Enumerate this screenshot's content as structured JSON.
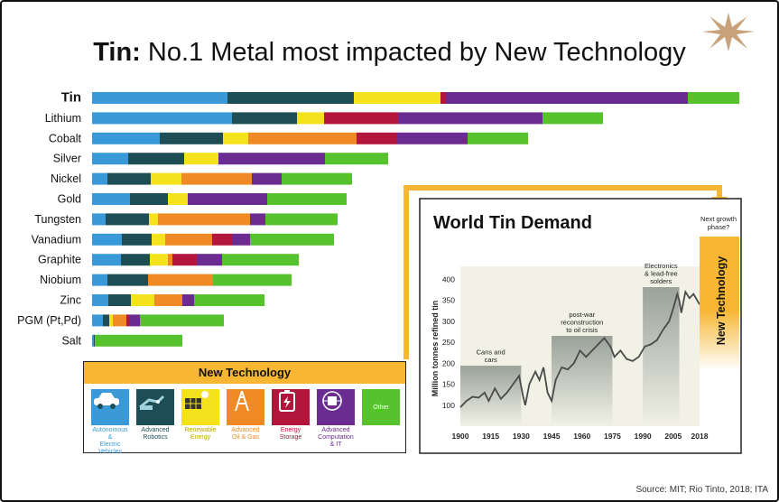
{
  "title": {
    "bold": "Tin:",
    "rest": " No.1 Metal most impacted by New Technology"
  },
  "source": "Source: MIT; Rio Tinto, 2018; ITA",
  "colors": {
    "autonomous": "#3a9ad9",
    "robotics": "#1d4e55",
    "renewable": "#f4e21c",
    "oilgas": "#f08a24",
    "storage": "#b3153c",
    "computation": "#6a2c91",
    "other": "#56c22e"
  },
  "chart_data": [
    {
      "type": "bar",
      "subtype": "stacked-horizontal",
      "categories": [
        "Tin",
        "Lithium",
        "Cobalt",
        "Silver",
        "Nickel",
        "Gold",
        "Tungsten",
        "Vanadium",
        "Graphite",
        "Niobium",
        "Zinc",
        "PGM (Pt,Pd)",
        "Salt"
      ],
      "series": [
        {
          "name": "Autonomous & Electric Vehicles",
          "color": "#3a9ad9",
          "values": [
            150,
            155,
            75,
            40,
            17,
            42,
            15,
            33,
            32,
            17,
            18,
            12,
            2
          ]
        },
        {
          "name": "Advanced Robotics",
          "color": "#1d4e55",
          "values": [
            140,
            72,
            70,
            62,
            48,
            42,
            48,
            33,
            32,
            45,
            25,
            7,
            1
          ]
        },
        {
          "name": "Renewable Energy",
          "color": "#f4e21c",
          "values": [
            96,
            30,
            28,
            38,
            34,
            22,
            10,
            15,
            20,
            0,
            26,
            4,
            0
          ]
        },
        {
          "name": "Advanced Oil & Gas",
          "color": "#f08a24",
          "values": [
            0,
            0,
            120,
            0,
            78,
            0,
            102,
            52,
            5,
            72,
            31,
            15,
            1
          ]
        },
        {
          "name": "Energy Storage",
          "color": "#b3153c",
          "values": [
            6,
            82,
            45,
            0,
            0,
            0,
            0,
            22,
            27,
            0,
            0,
            3,
            0
          ]
        },
        {
          "name": "Advanced Computation & IT",
          "color": "#6a2c91",
          "values": [
            268,
            160,
            78,
            118,
            33,
            88,
            17,
            20,
            28,
            0,
            13,
            12,
            0
          ]
        },
        {
          "name": "Other",
          "color": "#56c22e",
          "values": [
            57,
            67,
            67,
            70,
            78,
            88,
            80,
            93,
            85,
            87,
            78,
            93,
            96
          ]
        }
      ]
    },
    {
      "type": "line",
      "title": "World Tin Demand",
      "ylabel": "Million tonnes refined tin",
      "xlim": [
        1900,
        2018
      ],
      "ylim": [
        50,
        420
      ],
      "xticks": [
        "1900",
        "1915",
        "1930",
        "1945",
        "1960",
        "1975",
        "1990",
        "2005",
        "2018"
      ],
      "yticks": [
        "100",
        "150",
        "200",
        "250",
        "300",
        "350",
        "400"
      ],
      "x": [
        1900,
        1903,
        1906,
        1909,
        1912,
        1914,
        1917,
        1920,
        1923,
        1926,
        1929,
        1931,
        1932,
        1934,
        1937,
        1939,
        1941,
        1943,
        1945,
        1947,
        1950,
        1953,
        1956,
        1959,
        1962,
        1965,
        1968,
        1971,
        1974,
        1976,
        1979,
        1982,
        1985,
        1988,
        1991,
        1994,
        1997,
        2000,
        2003,
        2005,
        2007,
        2008,
        2009,
        2011,
        2013,
        2015,
        2018
      ],
      "y": [
        95,
        110,
        120,
        118,
        130,
        110,
        140,
        115,
        130,
        150,
        170,
        120,
        100,
        150,
        180,
        160,
        190,
        130,
        110,
        160,
        190,
        185,
        200,
        230,
        215,
        230,
        245,
        260,
        240,
        215,
        230,
        210,
        205,
        215,
        240,
        245,
        255,
        280,
        300,
        330,
        365,
        350,
        320,
        370,
        355,
        365,
        340
      ],
      "annotations": [
        {
          "text": [
            "Cans and",
            "cars"
          ],
          "x0": 1900,
          "x1": 1930
        },
        {
          "text": [
            "post-war",
            "reconstruction",
            "to oil crisis"
          ],
          "x0": 1945,
          "x1": 1975
        },
        {
          "text": [
            "Electronics",
            "& lead-free",
            "solders"
          ],
          "x0": 1990,
          "x1": 2008
        }
      ]
    }
  ],
  "growth": {
    "text": [
      "Next growth",
      "phase?"
    ],
    "label": "New Technology"
  },
  "legend": {
    "title": "New Technology",
    "items": [
      {
        "label": [
          "Autonomous &",
          "Electric Vehicles"
        ],
        "icon": "car-icon",
        "color": "#3a9ad9"
      },
      {
        "label": [
          "Advanced",
          "Robotics"
        ],
        "icon": "robot-hand-icon",
        "color": "#1d4e55"
      },
      {
        "label": [
          "Renewable",
          "Energy"
        ],
        "icon": "solar-panel-icon",
        "color": "#f4e21c"
      },
      {
        "label": [
          "Advanced",
          "Oil & Gas"
        ],
        "icon": "oil-rig-icon",
        "color": "#f08a24"
      },
      {
        "label": [
          "Energy",
          "Storage"
        ],
        "icon": "battery-icon",
        "color": "#b3153c"
      },
      {
        "label": [
          "Advanced",
          "Computation & IT"
        ],
        "icon": "chip-icon",
        "color": "#6a2c91"
      },
      {
        "label": [
          "Other"
        ],
        "icon": "",
        "color": "#56c22e"
      }
    ]
  }
}
